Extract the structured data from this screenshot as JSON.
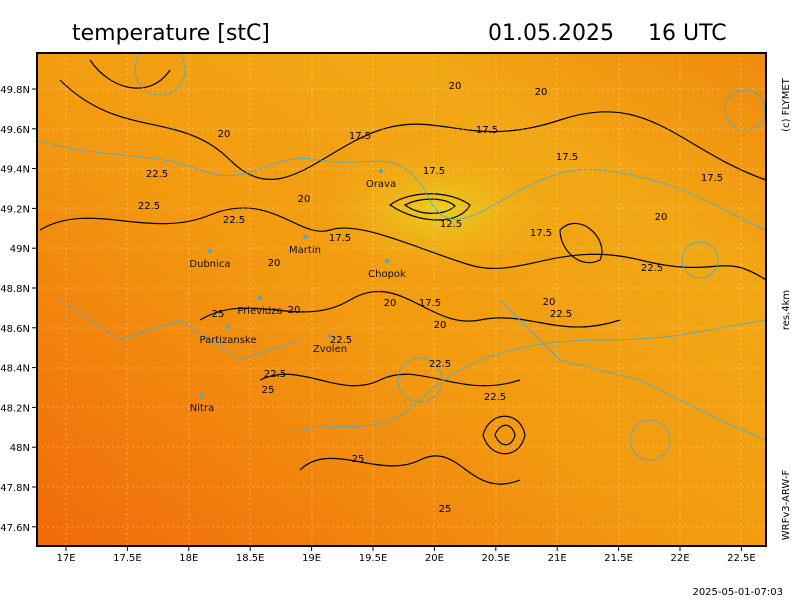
{
  "header": {
    "title": "temperature [stC]",
    "date": "01.05.2025",
    "time": "16 UTC"
  },
  "side": {
    "copyright": "(c) FLYMET",
    "resolution": "res.4km",
    "model": "WRFv3-ARW-F"
  },
  "footer": "2025-05-01-07:03",
  "axes": {
    "lon": [
      "17E",
      "17.5E",
      "18E",
      "18.5E",
      "19E",
      "19.5E",
      "20E",
      "20.5E",
      "21E",
      "21.5E",
      "22E",
      "22.5E"
    ],
    "lat": [
      "49.8N",
      "49.6N",
      "49.4N",
      "49.2N",
      "49N",
      "48.8N",
      "48.6N",
      "48.4N",
      "48.2N",
      "48N",
      "47.8N",
      "47.6N"
    ]
  },
  "contour_labels": [
    "20",
    "20",
    "17.5",
    "17.5",
    "20",
    "17.5",
    "17.5",
    "22.5",
    "17.5",
    "20",
    "22.5",
    "22.5",
    "12.5",
    "20",
    "17.5",
    "17.5",
    "20",
    "22.5",
    "20",
    "17.5",
    "20",
    "20",
    "22.5",
    "25",
    "20",
    "22.5",
    "22.5",
    "22.5",
    "25",
    "22.5",
    "25",
    "25"
  ],
  "places": [
    "Orava",
    "Martin",
    "Dubnica",
    "Chopok",
    "Prievidza",
    "Partizanske",
    "Zvolen",
    "Nitra"
  ]
}
